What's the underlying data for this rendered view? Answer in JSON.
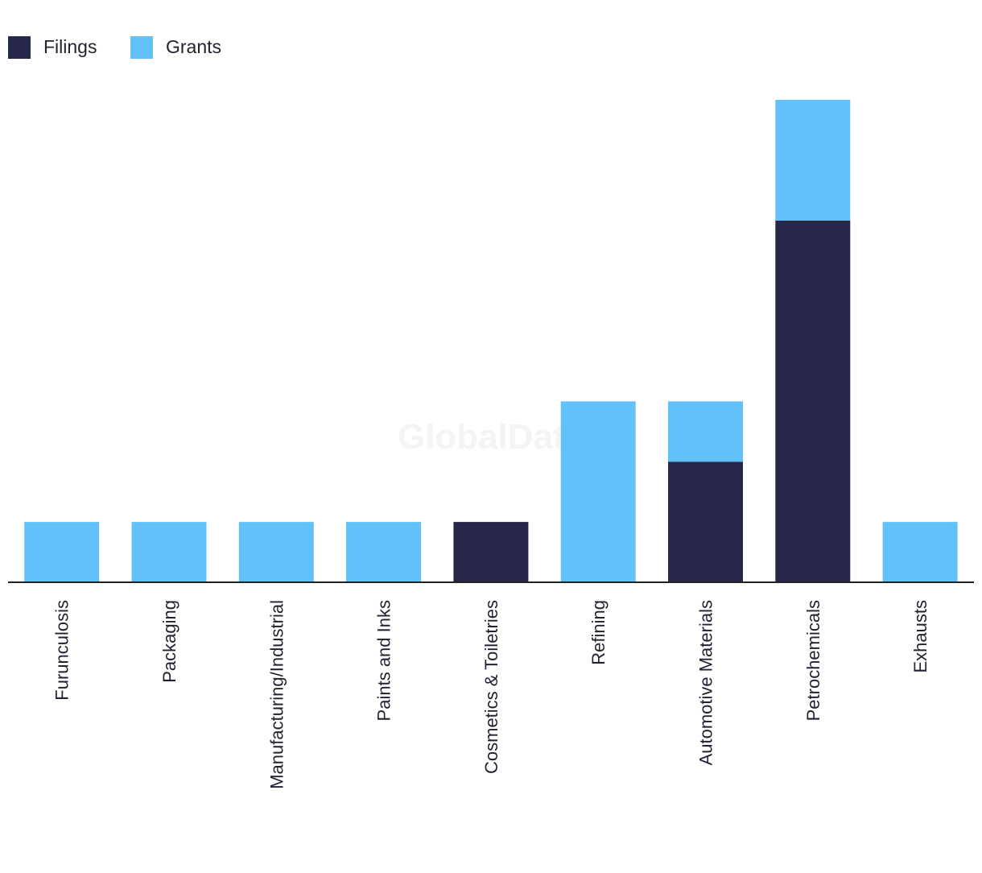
{
  "chart_data": {
    "type": "bar",
    "stacked": true,
    "title": "",
    "xlabel": "",
    "ylabel": "",
    "ylim": [
      0,
      8
    ],
    "legend_position": "top-left",
    "categories": [
      "Furunculosis",
      "Packaging",
      "Manufacturing/Industrial",
      "Paints and Inks",
      "Cosmetics & Toiletries",
      "Refining",
      "Automotive Materials",
      "Petrochemicals",
      "Exhausts"
    ],
    "series": [
      {
        "name": "Filings",
        "color": "#27274a",
        "values": [
          0,
          0,
          0,
          0,
          1,
          0,
          2,
          6,
          0
        ]
      },
      {
        "name": "Grants",
        "color": "#62c1f9",
        "values": [
          1,
          1,
          1,
          1,
          0,
          3,
          1,
          2,
          1
        ]
      }
    ]
  },
  "watermark": "GlobalData"
}
